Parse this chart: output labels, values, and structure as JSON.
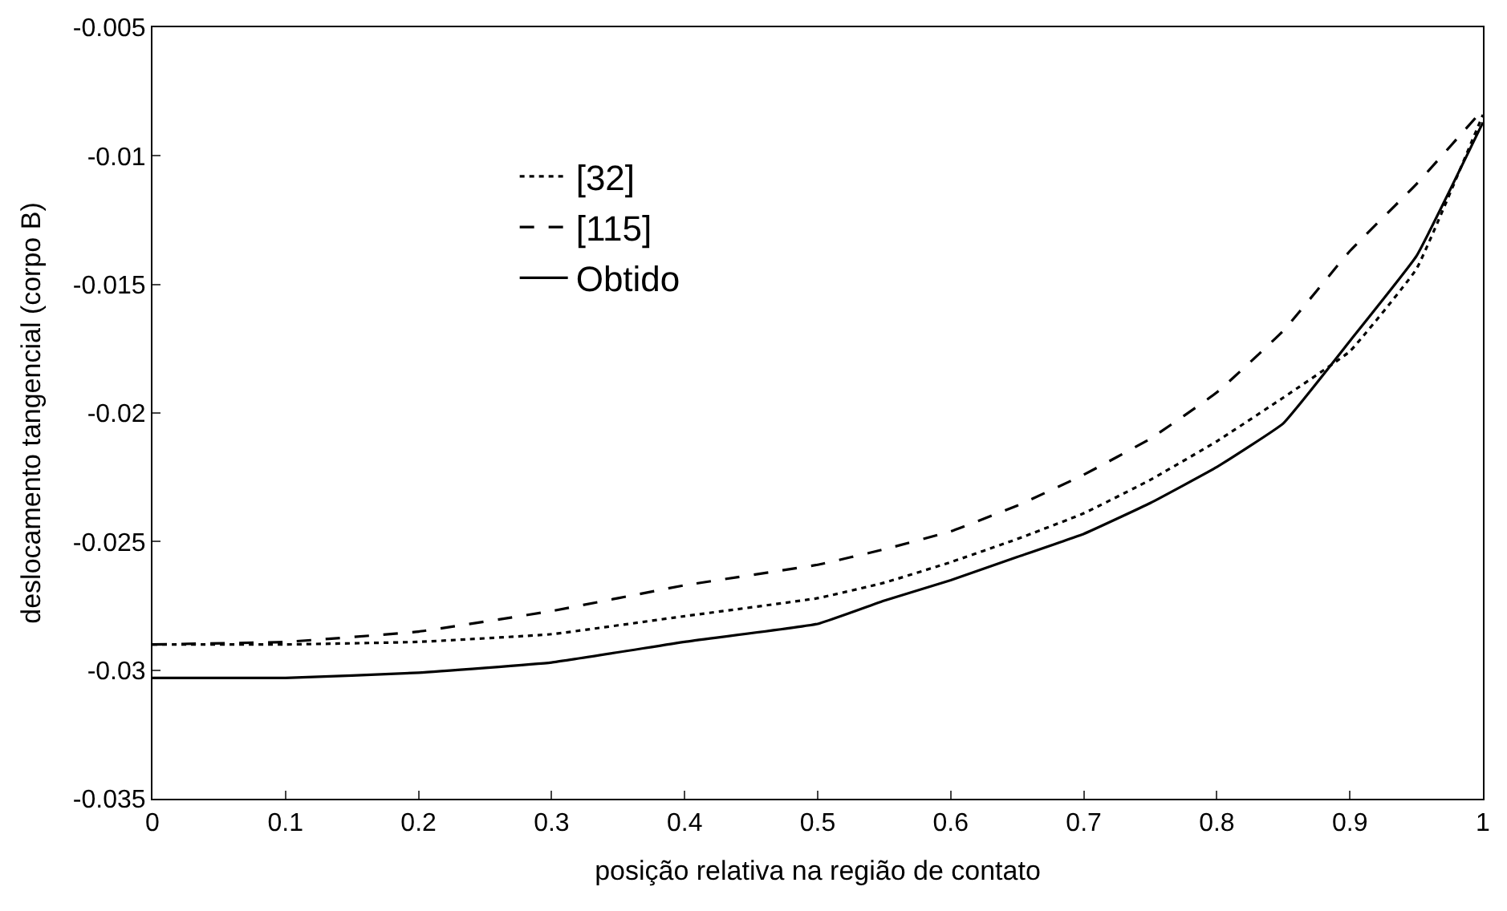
{
  "chart_data": {
    "type": "line",
    "xlabel": "posição relativa na região de contato",
    "ylabel": "deslocamento tangencial (corpo B)",
    "x": [
      0,
      0.1,
      0.2,
      0.3,
      0.4,
      0.5,
      0.55,
      0.6,
      0.65,
      0.7,
      0.75,
      0.8,
      0.85,
      0.9,
      0.95,
      1
    ],
    "series": [
      {
        "name": "[32]",
        "color": "#000000",
        "line_style": "dotted",
        "values": [
          -0.029,
          -0.029,
          -0.0289,
          -0.0286,
          -0.0279,
          -0.0272,
          -0.0266,
          -0.0258,
          -0.0249,
          -0.0239,
          -0.0226,
          -0.0211,
          -0.0194,
          -0.0176,
          -0.0144,
          -0.0084
        ]
      },
      {
        "name": "[115]",
        "color": "#000000",
        "line_style": "dashed",
        "values": [
          -0.029,
          -0.0289,
          -0.0285,
          -0.0277,
          -0.0267,
          -0.0259,
          -0.0253,
          -0.0246,
          -0.0236,
          -0.0224,
          -0.021,
          -0.0192,
          -0.0168,
          -0.0137,
          -0.0111,
          -0.0082
        ]
      },
      {
        "name": "Obtido",
        "color": "#000000",
        "line_style": "solid",
        "values": [
          -0.0303,
          -0.0303,
          -0.0301,
          -0.0297,
          -0.0289,
          -0.0282,
          -0.0273,
          -0.0265,
          -0.0256,
          -0.0247,
          -0.0235,
          -0.0221,
          -0.0204,
          -0.0172,
          -0.0139,
          -0.0087
        ]
      }
    ],
    "xlim": [
      0,
      1
    ],
    "xticks": [
      0,
      0.1,
      0.2,
      0.3,
      0.4,
      0.5,
      0.6,
      0.7,
      0.8,
      0.9,
      1
    ],
    "ylim": [
      -0.035,
      -0.005
    ],
    "yticks": [
      -0.035,
      -0.03,
      -0.025,
      -0.02,
      -0.015,
      -0.01,
      -0.005
    ],
    "legend": "top left",
    "marker": "none"
  }
}
